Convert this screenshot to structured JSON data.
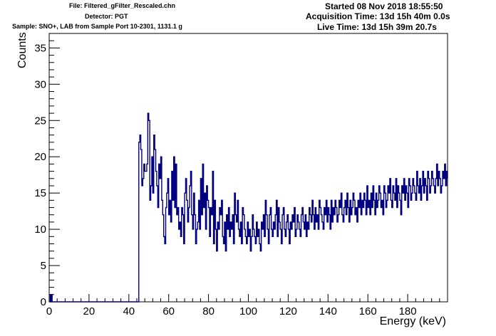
{
  "header": {
    "file": "File: Filtered_gFilter_Rescaled.chn",
    "detector": "Detector: PGT",
    "sample": "Sample: SNO+, LAB from Sample Port 10-2301, 1131.1 g",
    "started": "Started 08 Nov 2018 18:55:50",
    "acquisition": "Acquisition Time: 13d 15h 40m 0.0s",
    "live": "Live Time: 13d 15h 39m 20.7s"
  },
  "chart_data": {
    "type": "line",
    "style": "histogram-step",
    "xlabel": "Energy (keV)",
    "ylabel": "Counts",
    "xlim": [
      0,
      200
    ],
    "ylim": [
      0,
      37
    ],
    "xticks": [
      0,
      20,
      40,
      60,
      80,
      100,
      120,
      140,
      160,
      180
    ],
    "yticks": [
      0,
      5,
      10,
      15,
      20,
      25,
      30,
      35
    ],
    "bin_width": 0.5,
    "x_start": 0,
    "grid": false,
    "legend": "none",
    "line_color": "#000080",
    "values": [
      1,
      0,
      1,
      0,
      0,
      0,
      0,
      0,
      0,
      0,
      0,
      0,
      0,
      0,
      0,
      0,
      0,
      0,
      0,
      0,
      0,
      0,
      0,
      0,
      0,
      0,
      0,
      0,
      0,
      0,
      0,
      0,
      0,
      0,
      0,
      0,
      0,
      0,
      0,
      0,
      0,
      0,
      0,
      0,
      0,
      0,
      0,
      0,
      0,
      0,
      0,
      0,
      0,
      0,
      0,
      0,
      0,
      0,
      0,
      0,
      0,
      0,
      0,
      0,
      0,
      0,
      0,
      0,
      0,
      0,
      0,
      0,
      0,
      0,
      0,
      0,
      0,
      0,
      0,
      0,
      0,
      0,
      0,
      0,
      0,
      0,
      0,
      0,
      0,
      0,
      22,
      23,
      21,
      16,
      17,
      19,
      18,
      18,
      19,
      26,
      25,
      14,
      16,
      20,
      15,
      23,
      21,
      18,
      16,
      13,
      19,
      17,
      20,
      14,
      12,
      9,
      8,
      13,
      15,
      17,
      12,
      14,
      11,
      18,
      14,
      20,
      13,
      19,
      12,
      13,
      10,
      11,
      9,
      13,
      12,
      8,
      15,
      17,
      14,
      11,
      13,
      16,
      18,
      12,
      10,
      15,
      12,
      8,
      10,
      11,
      14,
      10,
      17,
      12,
      19,
      13,
      15,
      10,
      16,
      14,
      13,
      9,
      13,
      12,
      18,
      8,
      14,
      10,
      7,
      11,
      10,
      13,
      12,
      14,
      9,
      8,
      11,
      7,
      12,
      10,
      13,
      9,
      11,
      10,
      12,
      8,
      15,
      12,
      11,
      14,
      10,
      9,
      11,
      8,
      13,
      12,
      10,
      9,
      8,
      11,
      9,
      10,
      7,
      9,
      12,
      10,
      9,
      8,
      11,
      9,
      10,
      8,
      7,
      11,
      10,
      12,
      9,
      14,
      12,
      10,
      8,
      12,
      13,
      10,
      9,
      11,
      10,
      12,
      14,
      9,
      13,
      11,
      10,
      8,
      12,
      13,
      10,
      9,
      11,
      12,
      10,
      8,
      11,
      10,
      12,
      11,
      13,
      9,
      10,
      12,
      11,
      10,
      9,
      12,
      13,
      11,
      10,
      12,
      9,
      11,
      10,
      13,
      12,
      11,
      14,
      12,
      10,
      13,
      11,
      12,
      10,
      14,
      13,
      12,
      11,
      10,
      13,
      12,
      14,
      11,
      13,
      12,
      10,
      14,
      11,
      13,
      12,
      14,
      13,
      11,
      12,
      14,
      13,
      15,
      12,
      11,
      13,
      14,
      12,
      15,
      13,
      11,
      14,
      12,
      13,
      15,
      14,
      12,
      13,
      11,
      14,
      13,
      15,
      12,
      14,
      13,
      15,
      14,
      12,
      16,
      13,
      14,
      12,
      15,
      13,
      16,
      14,
      12,
      15,
      13,
      14,
      16,
      15,
      13,
      14,
      12,
      16,
      15,
      13,
      14,
      16,
      15,
      17,
      14,
      13,
      16,
      15,
      14,
      17,
      13,
      16,
      15,
      14,
      12,
      16,
      15,
      17,
      14,
      16,
      15,
      13,
      17,
      16,
      14,
      15,
      17,
      16,
      15,
      14,
      18,
      16,
      15,
      17,
      14,
      16,
      18,
      15,
      17,
      16,
      14,
      18,
      17,
      15,
      16,
      18,
      17,
      16,
      15,
      17,
      19,
      16,
      18,
      17,
      15,
      16,
      18,
      17,
      19,
      16,
      18,
      17,
      15,
      19,
      16,
      18,
      17
    ]
  }
}
